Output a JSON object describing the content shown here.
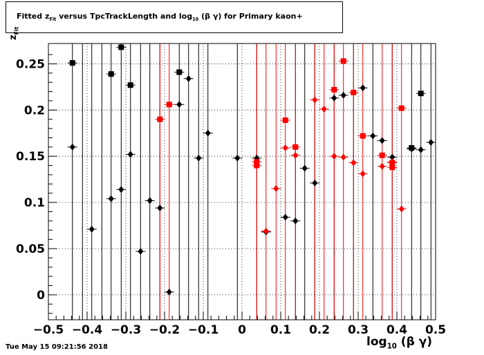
{
  "chart_data": {
    "type": "scatter",
    "title": "Fitted  z_Fit  versus TpcTrackLength and log_10 (β γ) for Primary kaon+",
    "title_parts": {
      "pre": "Fitted  z",
      "sub1": "Fit",
      "mid": "  versus TpcTrackLength and log",
      "sub2": "10",
      "post": " (β γ) for Primary kaon+"
    },
    "xlabel_parts": {
      "pre": "log",
      "sub": "10",
      "post": " (β γ)"
    },
    "ylabel_parts": {
      "pre": "z",
      "sub": "Fit"
    },
    "xlim": [
      -0.5,
      0.5
    ],
    "ylim": [
      -0.027,
      0.272
    ],
    "xticks": [
      -0.5,
      -0.4,
      -0.3,
      -0.2,
      -0.1,
      0,
      0.1,
      0.2,
      0.3,
      0.4,
      0.5
    ],
    "xtick_labels": [
      "−0.5",
      "−0.4",
      "−0.3",
      "−0.2",
      "−0.1",
      "0",
      "0.1",
      "0.2",
      "0.3",
      "0.4",
      "0.5"
    ],
    "yticks": [
      0,
      0.05,
      0.1,
      0.15,
      0.2,
      0.25
    ],
    "ytick_labels": [
      "0",
      "0.05",
      "0.1",
      "0.15",
      "0.2",
      "0.25"
    ],
    "grid": true,
    "colors": {
      "black": "#000000",
      "red": "#ff0000"
    },
    "series": [
      {
        "color": "#000000",
        "marker": "square",
        "points": [
          [
            -0.438,
            0.251
          ],
          [
            -0.338,
            0.239
          ],
          [
            -0.312,
            0.268
          ],
          [
            -0.288,
            0.227
          ],
          [
            -0.162,
            0.241
          ],
          [
            0.462,
            0.218
          ],
          [
            0.438,
            0.159
          ]
        ]
      },
      {
        "color": "#000000",
        "marker": "diamond",
        "points": [
          [
            -0.438,
            0.16
          ],
          [
            -0.388,
            0.071
          ],
          [
            -0.338,
            0.104
          ],
          [
            -0.312,
            0.114
          ],
          [
            -0.288,
            0.152
          ],
          [
            -0.262,
            0.047
          ],
          [
            -0.238,
            0.102
          ],
          [
            -0.212,
            0.094
          ],
          [
            -0.188,
            0.003
          ],
          [
            -0.162,
            0.206
          ],
          [
            -0.138,
            0.234
          ],
          [
            -0.112,
            0.148
          ],
          [
            -0.088,
            0.175
          ],
          [
            -0.012,
            0.148
          ],
          [
            0.038,
            0.148
          ],
          [
            0.062,
            0.068
          ],
          [
            0.112,
            0.084
          ],
          [
            0.138,
            0.08
          ],
          [
            0.162,
            0.137
          ],
          [
            0.188,
            0.121
          ],
          [
            0.212,
            0.201
          ],
          [
            0.238,
            0.213
          ],
          [
            0.262,
            0.216
          ],
          [
            0.312,
            0.224
          ],
          [
            0.338,
            0.172
          ],
          [
            0.362,
            0.167
          ],
          [
            0.388,
            0.149
          ],
          [
            0.438,
            0.158
          ],
          [
            0.462,
            0.157
          ],
          [
            0.488,
            0.165
          ]
        ]
      },
      {
        "color": "#ff0000",
        "marker": "square",
        "points": [
          [
            -0.212,
            0.19
          ],
          [
            -0.188,
            0.206
          ],
          [
            0.038,
            0.144
          ],
          [
            0.038,
            0.14
          ],
          [
            0.112,
            0.189
          ],
          [
            0.138,
            0.16
          ],
          [
            0.238,
            0.222
          ],
          [
            0.262,
            0.253
          ],
          [
            0.288,
            0.219
          ],
          [
            0.312,
            0.172
          ],
          [
            0.362,
            0.151
          ],
          [
            0.388,
            0.143
          ],
          [
            0.388,
            0.138
          ],
          [
            0.412,
            0.202
          ]
        ]
      },
      {
        "color": "#ff0000",
        "marker": "diamond",
        "points": [
          [
            0.062,
            0.069
          ],
          [
            0.088,
            0.115
          ],
          [
            0.112,
            0.159
          ],
          [
            0.138,
            0.151
          ],
          [
            0.188,
            0.211
          ],
          [
            0.212,
            0.201
          ],
          [
            0.238,
            0.15
          ],
          [
            0.262,
            0.149
          ],
          [
            0.288,
            0.143
          ],
          [
            0.312,
            0.131
          ],
          [
            0.362,
            0.139
          ],
          [
            0.388,
            0.144
          ],
          [
            0.412,
            0.093
          ]
        ]
      }
    ],
    "vlines_black": [
      -0.438,
      -0.412,
      -0.388,
      -0.362,
      -0.338,
      -0.312,
      -0.288,
      -0.262,
      -0.238,
      -0.212,
      -0.162,
      -0.138,
      -0.112,
      -0.088,
      -0.012,
      0.038,
      0.138,
      0.162,
      0.188,
      0.238,
      0.288,
      0.338,
      0.388,
      0.438,
      0.462,
      0.488
    ],
    "vlines_red": [
      -0.212,
      -0.188,
      0.038,
      0.062,
      0.088,
      0.112,
      0.138,
      0.188,
      0.212,
      0.238,
      0.262,
      0.288,
      0.312,
      0.362,
      0.388,
      0.412
    ]
  },
  "timestamp": "Tue May 15 09:21:56 2018"
}
